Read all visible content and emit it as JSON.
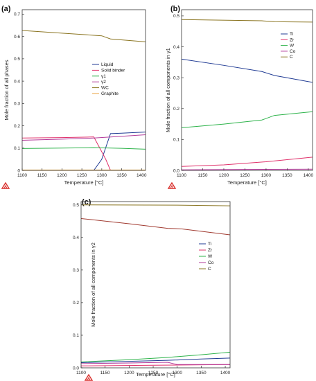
{
  "chart_data": [
    {
      "type": "line",
      "panel_label": "(a)",
      "xlabel": "Temperature [°C]",
      "ylabel": "Mole fraction of all phases",
      "xlim": [
        1100,
        1410
      ],
      "ylim": [
        0,
        0.72
      ],
      "xticks": [
        1100,
        1150,
        1200,
        1250,
        1300,
        1350,
        1400
      ],
      "yticks": [
        0,
        0.1,
        0.2,
        0.3,
        0.4,
        0.5,
        0.6,
        0.7
      ],
      "ytick_labels": [
        "0",
        "0.1",
        "0.2",
        "0.3",
        "0.4",
        "0.5",
        "0.6",
        "0.7"
      ],
      "legend_position": "right",
      "series": [
        {
          "name": "Liquid",
          "color": "#1f3a93",
          "points": [
            [
              1280,
              0.0
            ],
            [
              1300,
              0.05
            ],
            [
              1322,
              0.165
            ],
            [
              1350,
              0.167
            ],
            [
              1410,
              0.172
            ]
          ]
        },
        {
          "name": "Solid binder",
          "color": "#e0306a",
          "points": [
            [
              1100,
              0.145
            ],
            [
              1200,
              0.147
            ],
            [
              1280,
              0.15
            ],
            [
              1295,
              0.1
            ],
            [
              1310,
              0.05
            ],
            [
              1322,
              0.0
            ]
          ]
        },
        {
          "name": "γ1",
          "color": "#2db34a",
          "points": [
            [
              1100,
              0.098
            ],
            [
              1200,
              0.1
            ],
            [
              1280,
              0.102
            ],
            [
              1350,
              0.099
            ],
            [
              1410,
              0.095
            ]
          ]
        },
        {
          "name": "γ2",
          "color": "#b23a9a",
          "points": [
            [
              1100,
              0.135
            ],
            [
              1200,
              0.14
            ],
            [
              1280,
              0.145
            ],
            [
              1350,
              0.153
            ],
            [
              1410,
              0.16
            ]
          ]
        },
        {
          "name": "WC",
          "color": "#8a7420",
          "points": [
            [
              1100,
              0.627
            ],
            [
              1200,
              0.615
            ],
            [
              1300,
              0.603
            ],
            [
              1322,
              0.589
            ],
            [
              1410,
              0.576
            ]
          ]
        },
        {
          "name": "Graphite",
          "color": "#e8a23c",
          "points": [
            [
              1100,
              0.002
            ],
            [
              1280,
              0.002
            ],
            [
              1410,
              0.002
            ]
          ]
        }
      ]
    },
    {
      "type": "line",
      "panel_label": "(b)",
      "xlabel": "Temperature [°C]",
      "ylabel": "Mole fraction of all components in γ1",
      "xlim": [
        1100,
        1410
      ],
      "ylim": [
        0,
        0.52
      ],
      "xticks": [
        1100,
        1150,
        1200,
        1250,
        1300,
        1350,
        1400
      ],
      "yticks": [
        0,
        0.1,
        0.2,
        0.3,
        0.4,
        0.5
      ],
      "ytick_labels": [
        "0.0",
        "0.1",
        "0.2",
        "0.3",
        "0.4",
        "0.5"
      ],
      "legend_position": "top-right",
      "series": [
        {
          "name": "Ti",
          "color": "#1f3a93",
          "points": [
            [
              1100,
              0.36
            ],
            [
              1200,
              0.34
            ],
            [
              1290,
              0.32
            ],
            [
              1320,
              0.307
            ],
            [
              1410,
              0.285
            ]
          ]
        },
        {
          "name": "Zr",
          "color": "#e0306a",
          "points": [
            [
              1100,
              0.013
            ],
            [
              1200,
              0.018
            ],
            [
              1300,
              0.028
            ],
            [
              1410,
              0.043
            ]
          ]
        },
        {
          "name": "W",
          "color": "#2db34a",
          "points": [
            [
              1100,
              0.138
            ],
            [
              1200,
              0.15
            ],
            [
              1290,
              0.163
            ],
            [
              1320,
              0.178
            ],
            [
              1410,
              0.19
            ]
          ]
        },
        {
          "name": "Co",
          "color": "#b23a9a",
          "points": [
            [
              1100,
              0.002
            ],
            [
              1250,
              0.003
            ],
            [
              1410,
              0.004
            ]
          ]
        },
        {
          "name": "C",
          "color": "#8a7420",
          "points": [
            [
              1100,
              0.488
            ],
            [
              1290,
              0.484
            ],
            [
              1320,
              0.481
            ],
            [
              1410,
              0.48
            ]
          ]
        }
      ]
    },
    {
      "type": "line",
      "panel_label": "(c)",
      "xlabel": "Temperature [°C]",
      "ylabel": "Mole fraction of all components in γ2",
      "xlim": [
        1100,
        1410
      ],
      "ylim": [
        0,
        0.51
      ],
      "xticks": [
        1100,
        1150,
        1200,
        1250,
        1300,
        1350,
        1400
      ],
      "yticks": [
        0,
        0.1,
        0.2,
        0.3,
        0.4,
        0.5
      ],
      "ytick_labels": [
        "0.0",
        "0.1",
        "0.2",
        "0.3",
        "0.4",
        "0.5"
      ],
      "legend_position": "right",
      "series": [
        {
          "name": "Ti",
          "color": "#1f3a93",
          "points": [
            [
              1100,
              0.016
            ],
            [
              1200,
              0.02
            ],
            [
              1280,
              0.023
            ],
            [
              1350,
              0.027
            ],
            [
              1410,
              0.03
            ]
          ]
        },
        {
          "name": "Zr",
          "color": "#e0306a",
          "points": [
            [
              1100,
              0.006
            ],
            [
              1250,
              0.008
            ],
            [
              1410,
              0.01
            ]
          ]
        },
        {
          "name": "W",
          "color": "#2db34a",
          "points": [
            [
              1100,
              0.018
            ],
            [
              1200,
              0.025
            ],
            [
              1280,
              0.032
            ],
            [
              1350,
              0.04
            ],
            [
              1410,
              0.048
            ]
          ]
        },
        {
          "name": "Co",
          "color": "#b23a9a",
          "points": [
            [
              1100,
              0.013
            ],
            [
              1200,
              0.015
            ],
            [
              1280,
              0.017
            ],
            [
              1300,
              0.01
            ],
            [
              1410,
              0.01
            ]
          ]
        },
        {
          "name": "C",
          "color": "#8a7420",
          "points": [
            [
              1100,
              0.5
            ],
            [
              1300,
              0.499
            ],
            [
              1410,
              0.497
            ]
          ]
        },
        {
          "name": "",
          "color": "#a0392f",
          "points": [
            [
              1100,
              0.458
            ],
            [
              1200,
              0.442
            ],
            [
              1280,
              0.428
            ],
            [
              1310,
              0.426
            ],
            [
              1410,
              0.408
            ]
          ]
        }
      ]
    }
  ]
}
